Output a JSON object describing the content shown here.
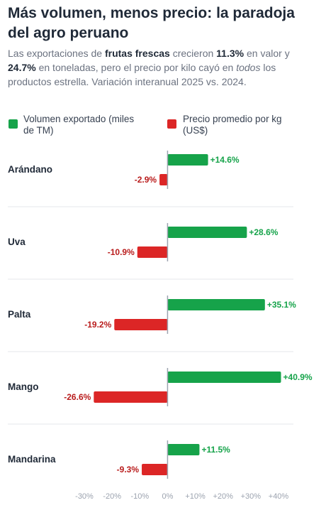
{
  "header": {
    "title": "Más volumen, menos precio: la paradoja del agro peruano",
    "subtitle_parts": [
      {
        "text": "Las exportaciones de ",
        "style": "plain"
      },
      {
        "text": "frutas frescas",
        "style": "bold"
      },
      {
        "text": " crecieron ",
        "style": "plain"
      },
      {
        "text": "11.3%",
        "style": "bold"
      },
      {
        "text": " en valor y ",
        "style": "plain"
      },
      {
        "text": "24.7%",
        "style": "bold"
      },
      {
        "text": " en toneladas, pero el precio por kilo cayó en ",
        "style": "plain"
      },
      {
        "text": "todos",
        "style": "italic"
      },
      {
        "text": " los productos estrella. Variación interanual 2025 vs. 2024.",
        "style": "plain"
      }
    ]
  },
  "legend": {
    "volume_label": "Volumen exportado (miles de TM)",
    "price_label": "Precio promedio por kg (US$)"
  },
  "colors": {
    "volume": "#16a34a",
    "price": "#dc2626",
    "grid": "#e5e7eb",
    "zero_line": "#9ca3af"
  },
  "chart_data": {
    "type": "bar",
    "orientation": "horizontal",
    "categories": [
      "Arándano",
      "Uva",
      "Palta",
      "Mango",
      "Mandarina"
    ],
    "series": [
      {
        "name": "Volumen exportado (miles de TM)",
        "values": [
          14.6,
          28.6,
          35.1,
          40.9,
          11.5
        ]
      },
      {
        "name": "Precio promedio por kg (US$)",
        "values": [
          -2.9,
          -10.9,
          -19.2,
          -26.6,
          -9.3
        ]
      }
    ],
    "value_labels": [
      [
        "+14.6%",
        "+28.6%",
        "+35.1%",
        "+40.9%",
        "+11.5%"
      ],
      [
        "-2.9%",
        "-10.9%",
        "-19.2%",
        "-26.6%",
        "-9.3%"
      ]
    ],
    "xlim": [
      -30,
      40
    ],
    "xticks": [
      -30,
      -20,
      -10,
      0,
      10,
      20,
      30,
      40
    ],
    "xtick_labels": [
      "-30%",
      "-20%",
      "-10%",
      "0%",
      "+10%",
      "+20%",
      "+30%",
      "+40%"
    ],
    "legend_position": "top-left"
  }
}
